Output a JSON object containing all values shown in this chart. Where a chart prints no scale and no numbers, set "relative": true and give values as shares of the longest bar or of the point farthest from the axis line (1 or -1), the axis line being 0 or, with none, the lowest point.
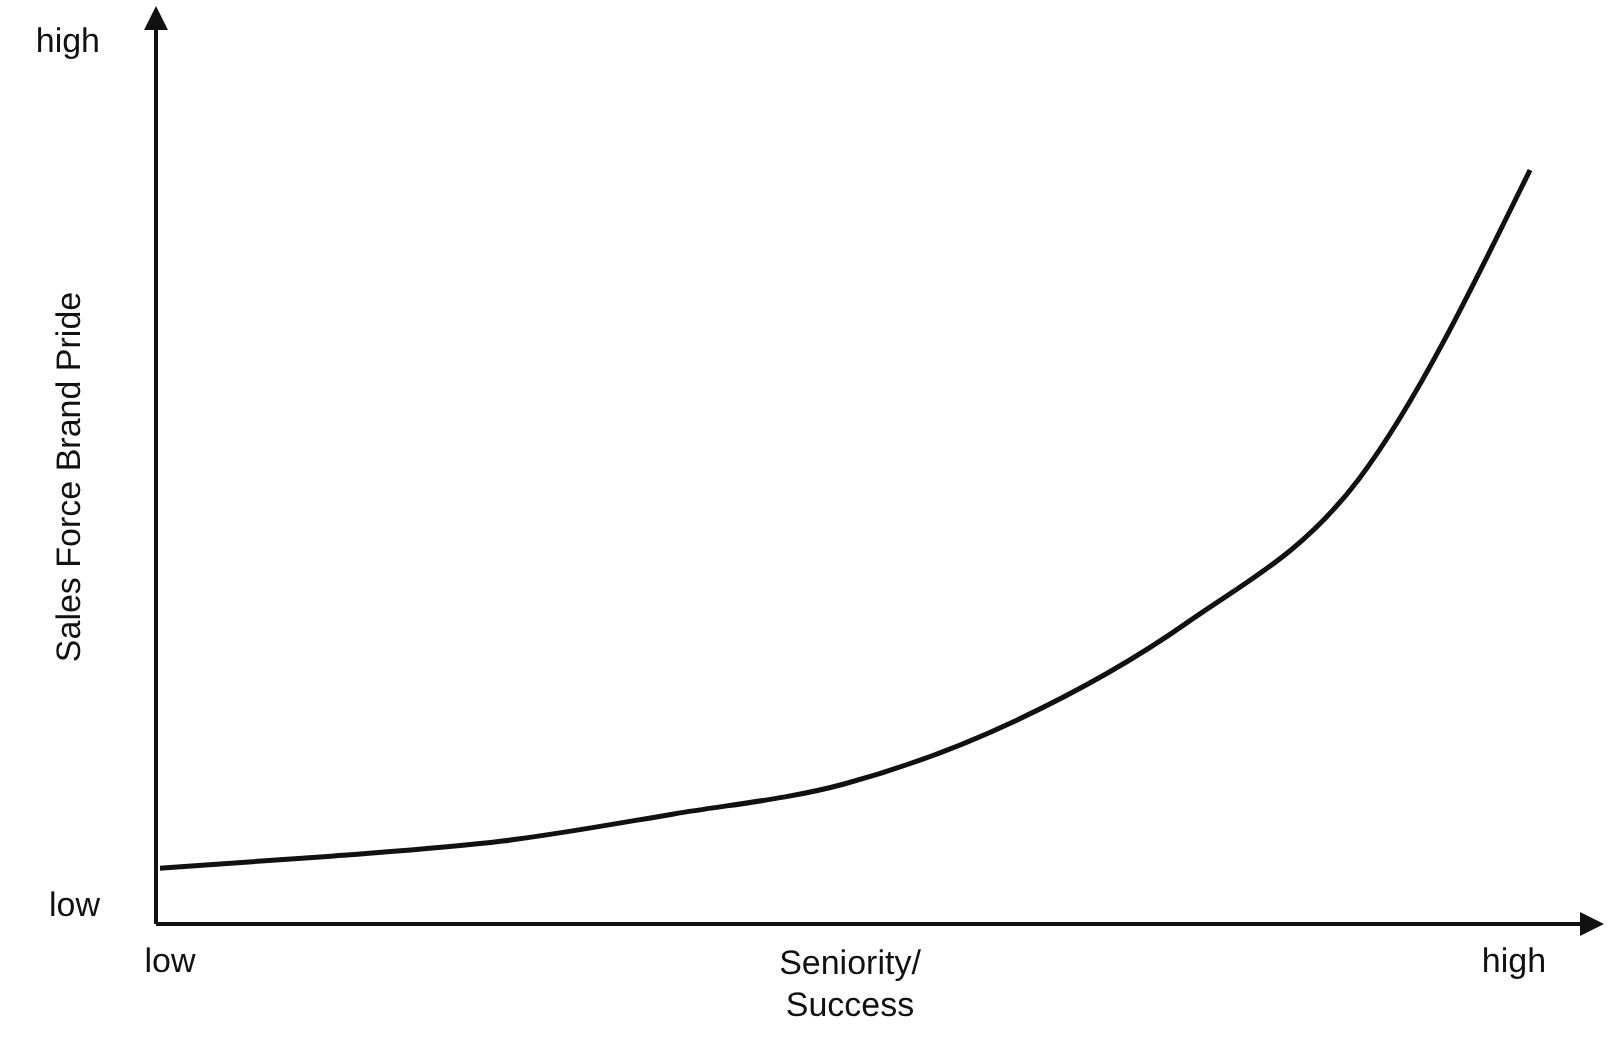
{
  "chart_data": {
    "type": "line",
    "xlabel": "Seniority/ Success",
    "ylabel": "Sales Force Brand Pride",
    "relative": true,
    "categories": [
      null,
      null,
      null,
      null,
      null,
      null,
      null,
      null,
      null
    ],
    "annotations": [
      "low",
      "high",
      "low",
      "high"
    ],
    "series": [
      {
        "color": "#111111",
        "values": [
          0.074,
          0.09,
          0.11,
          0.146,
          0.186,
          0.27,
          0.4,
          0.59,
          1
        ]
      }
    ],
    "marker": "none",
    "line_style": "solid"
  }
}
